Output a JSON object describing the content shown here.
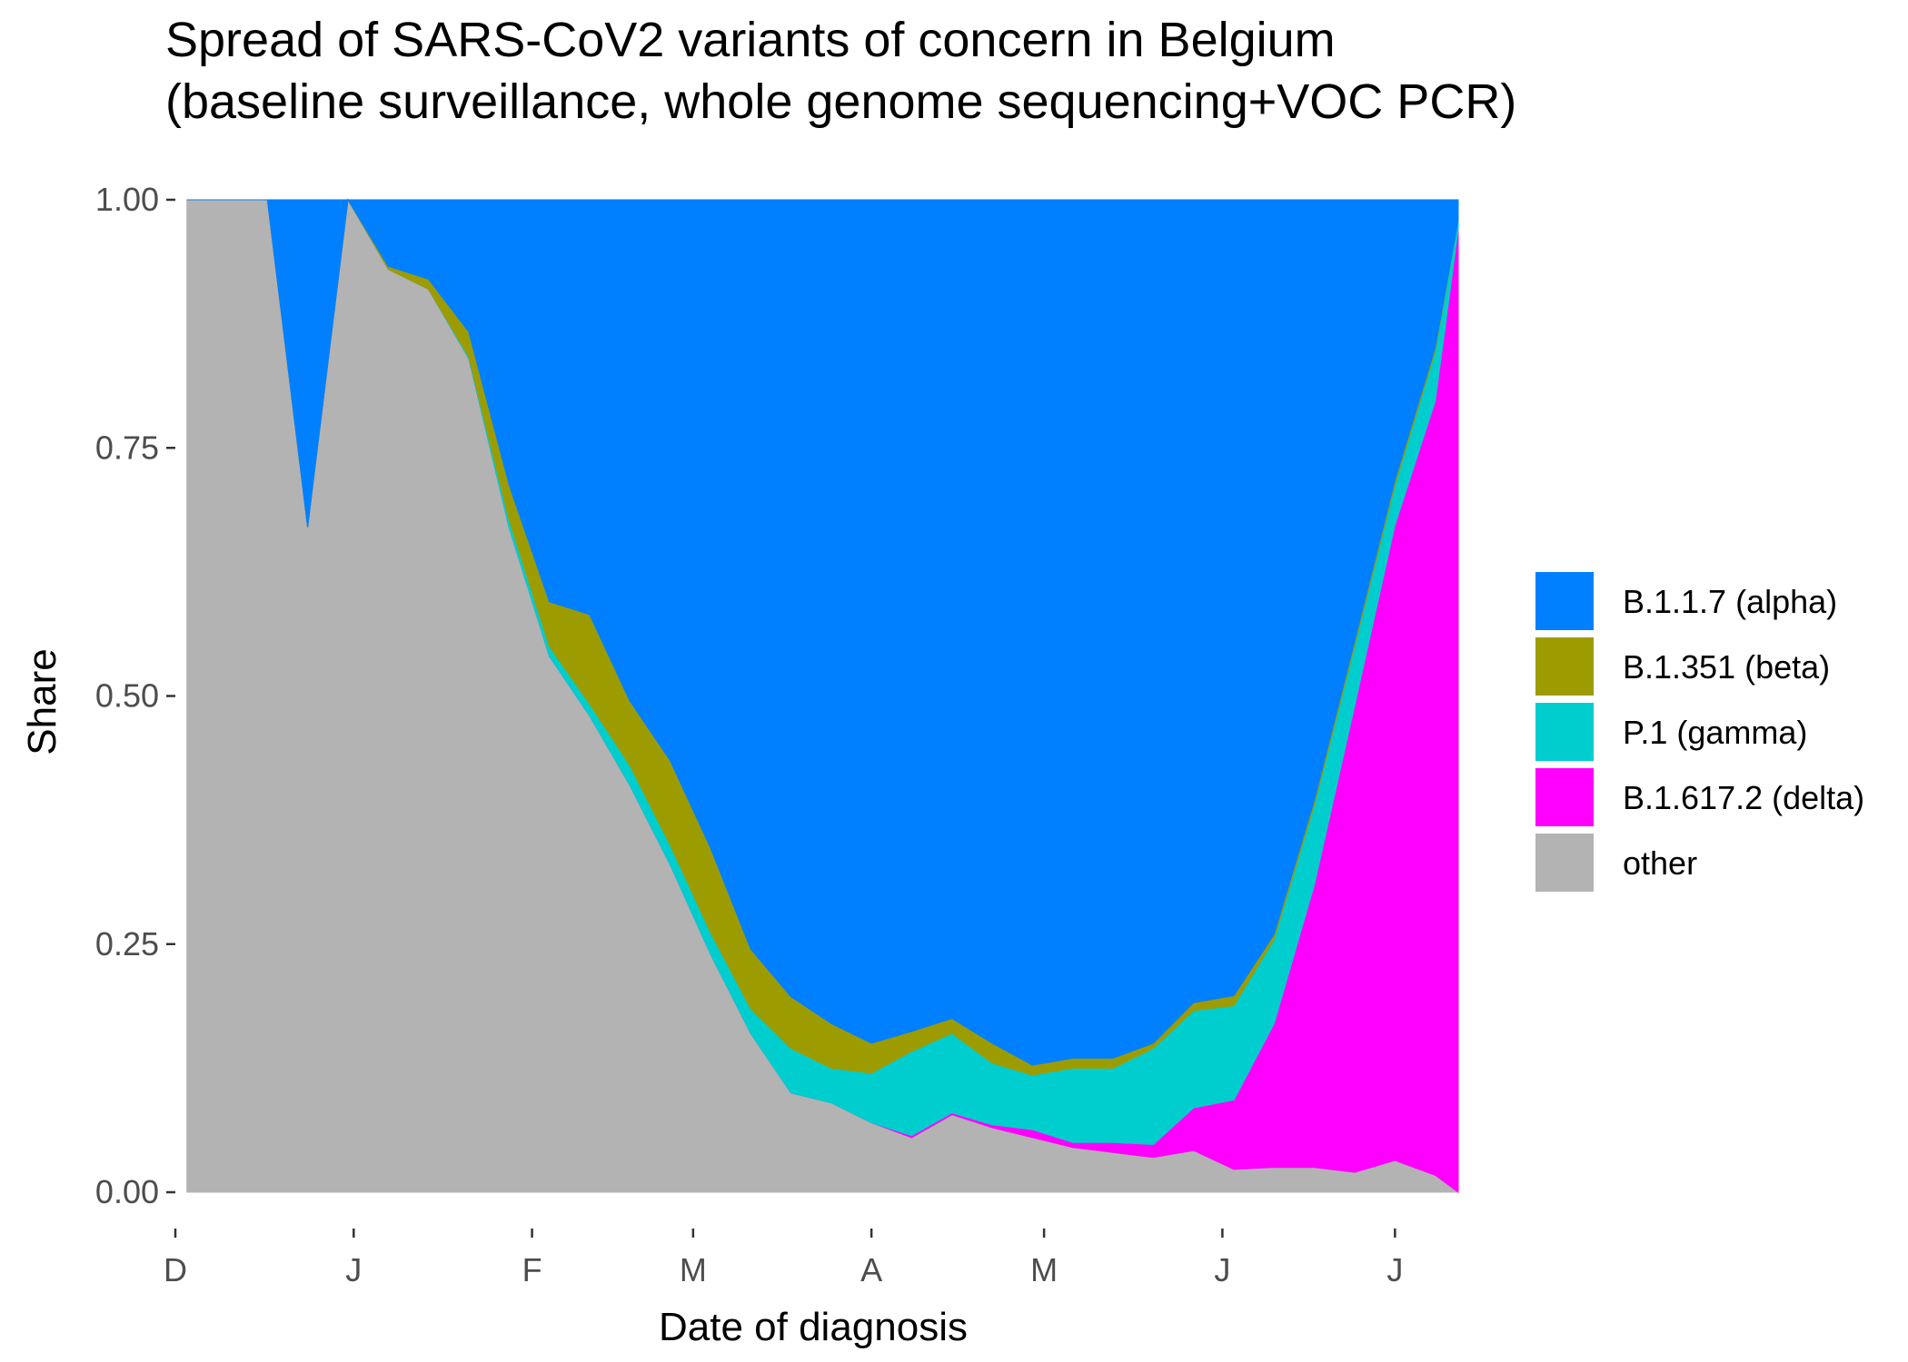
{
  "chart_data": {
    "type": "area",
    "stacked": true,
    "normalized": true,
    "title": "Spread of SARS-CoV2 variants of concern in Belgium",
    "subtitle": "(baseline surveillance, whole genome sequencing+VOC PCR)",
    "xlabel": "Date of diagnosis",
    "ylabel": "Share",
    "ylim": [
      0,
      1
    ],
    "y_ticks": [
      "0.00",
      "0.25",
      "0.50",
      "0.75",
      "1.00"
    ],
    "x_ticks": [
      {
        "label": "D",
        "date": "2020-12-01"
      },
      {
        "label": "J",
        "date": "2021-01-01"
      },
      {
        "label": "F",
        "date": "2021-02-01"
      },
      {
        "label": "M",
        "date": "2021-03-01"
      },
      {
        "label": "A",
        "date": "2021-04-01"
      },
      {
        "label": "M",
        "date": "2021-05-01"
      },
      {
        "label": "J",
        "date": "2021-06-01"
      },
      {
        "label": "J",
        "date": "2021-07-01"
      }
    ],
    "xlim": [
      "2020-12-01",
      "2021-07-12"
    ],
    "grid": false,
    "legend_position": "right",
    "x": [
      "2020-12-03",
      "2020-12-10",
      "2020-12-17",
      "2020-12-24",
      "2020-12-31",
      "2021-01-07",
      "2021-01-14",
      "2021-01-21",
      "2021-01-28",
      "2021-02-04",
      "2021-02-11",
      "2021-02-18",
      "2021-02-25",
      "2021-03-04",
      "2021-03-11",
      "2021-03-18",
      "2021-03-25",
      "2021-04-01",
      "2021-04-08",
      "2021-04-15",
      "2021-04-22",
      "2021-04-29",
      "2021-05-06",
      "2021-05-13",
      "2021-05-20",
      "2021-05-27",
      "2021-06-03",
      "2021-06-10",
      "2021-06-17",
      "2021-06-24",
      "2021-07-01",
      "2021-07-08",
      "2021-07-12"
    ],
    "series": [
      {
        "name": "other",
        "color": "#b3b3b3",
        "values": [
          1.0,
          1.0,
          1.0,
          0.67,
          1.0,
          0.93,
          0.91,
          0.84,
          0.67,
          0.54,
          0.48,
          0.41,
          0.33,
          0.24,
          0.16,
          0.1,
          0.09,
          0.07,
          0.055,
          0.078,
          0.065,
          0.055,
          0.045,
          0.04,
          0.035,
          0.042,
          0.023,
          0.025,
          0.025,
          0.02,
          0.032,
          0.017,
          0.0
        ]
      },
      {
        "name": "B.1.617.2 (delta)",
        "color": "#ff00ff",
        "values": [
          0,
          0,
          0,
          0,
          0,
          0,
          0,
          0,
          0,
          0,
          0,
          0,
          0,
          0,
          0,
          0,
          0,
          0,
          0.002,
          0.002,
          0.003,
          0.008,
          0.005,
          0.01,
          0.013,
          0.043,
          0.07,
          0.145,
          0.285,
          0.47,
          0.64,
          0.78,
          0.97
        ]
      },
      {
        "name": "P.1 (gamma)",
        "color": "#00cdcd",
        "values": [
          0,
          0,
          0,
          0,
          0,
          0,
          0,
          0.002,
          0.008,
          0.01,
          0.012,
          0.02,
          0.02,
          0.022,
          0.025,
          0.045,
          0.035,
          0.05,
          0.085,
          0.08,
          0.062,
          0.055,
          0.075,
          0.075,
          0.097,
          0.098,
          0.095,
          0.085,
          0.08,
          0.06,
          0.04,
          0.05,
          0.01
        ]
      },
      {
        "name": "B.1.351 (beta)",
        "color": "#9c9c00",
        "values": [
          0,
          0,
          0,
          0,
          0,
          0.003,
          0.01,
          0.025,
          0.035,
          0.045,
          0.09,
          0.065,
          0.085,
          0.085,
          0.06,
          0.052,
          0.045,
          0.03,
          0.02,
          0.015,
          0.02,
          0.01,
          0.01,
          0.01,
          0.005,
          0.008,
          0.01,
          0.005,
          0.005,
          0.005,
          0.005,
          0.004,
          0.0
        ]
      },
      {
        "name": "B.1.1.7 (alpha)",
        "color": "#0080ff",
        "values": [
          0,
          0,
          0,
          0.33,
          0,
          0.067,
          0.08,
          0.133,
          0.287,
          0.405,
          0.418,
          0.505,
          0.565,
          0.653,
          0.755,
          0.803,
          0.83,
          0.85,
          0.838,
          0.825,
          0.85,
          0.872,
          0.865,
          0.865,
          0.85,
          0.809,
          0.802,
          0.74,
          0.605,
          0.445,
          0.283,
          0.149,
          0.02
        ]
      }
    ],
    "legend_order": [
      "B.1.1.7 (alpha)",
      "B.1.351 (beta)",
      "P.1 (gamma)",
      "B.1.617.2 (delta)",
      "other"
    ]
  }
}
